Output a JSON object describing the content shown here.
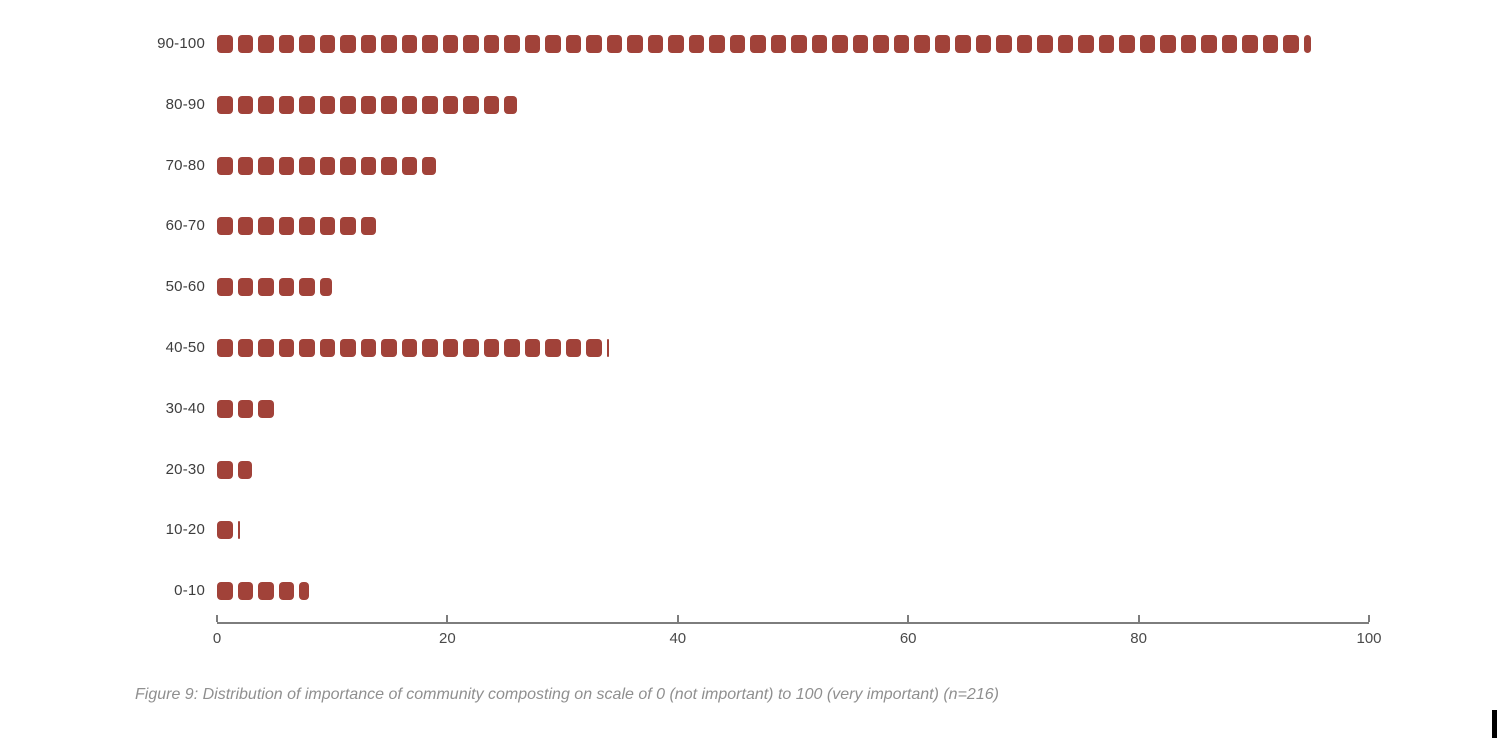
{
  "figure": {
    "caption": "Figure 9: Distribution of importance of community composting on scale of 0 (not important) to 100 (very important) (n=216)"
  },
  "chart_data": {
    "type": "bar",
    "orientation": "horizontal",
    "style": "dashed-square-pictogram-bars",
    "title": "",
    "xlabel": "",
    "ylabel": "",
    "categories": [
      "90-100",
      "80-90",
      "70-80",
      "60-70",
      "50-60",
      "40-50",
      "30-40",
      "20-30",
      "10-20",
      "0-10"
    ],
    "values": [
      95,
      26,
      19,
      14,
      10,
      34,
      5,
      3,
      2,
      8
    ],
    "n": 216,
    "xlim": [
      0,
      100
    ],
    "x_ticks": [
      "0",
      "20",
      "40",
      "60",
      "80",
      "100"
    ],
    "x_tick_values": [
      0,
      20,
      40,
      60,
      80,
      100
    ],
    "bar_color": "#a14239",
    "axis_color": "#7d7d7d",
    "category_label_color": "#3d3d3d",
    "tick_label_color": "#4a4a4a",
    "caption_color": "#8f8f8f",
    "grid": false,
    "legend": "none"
  }
}
